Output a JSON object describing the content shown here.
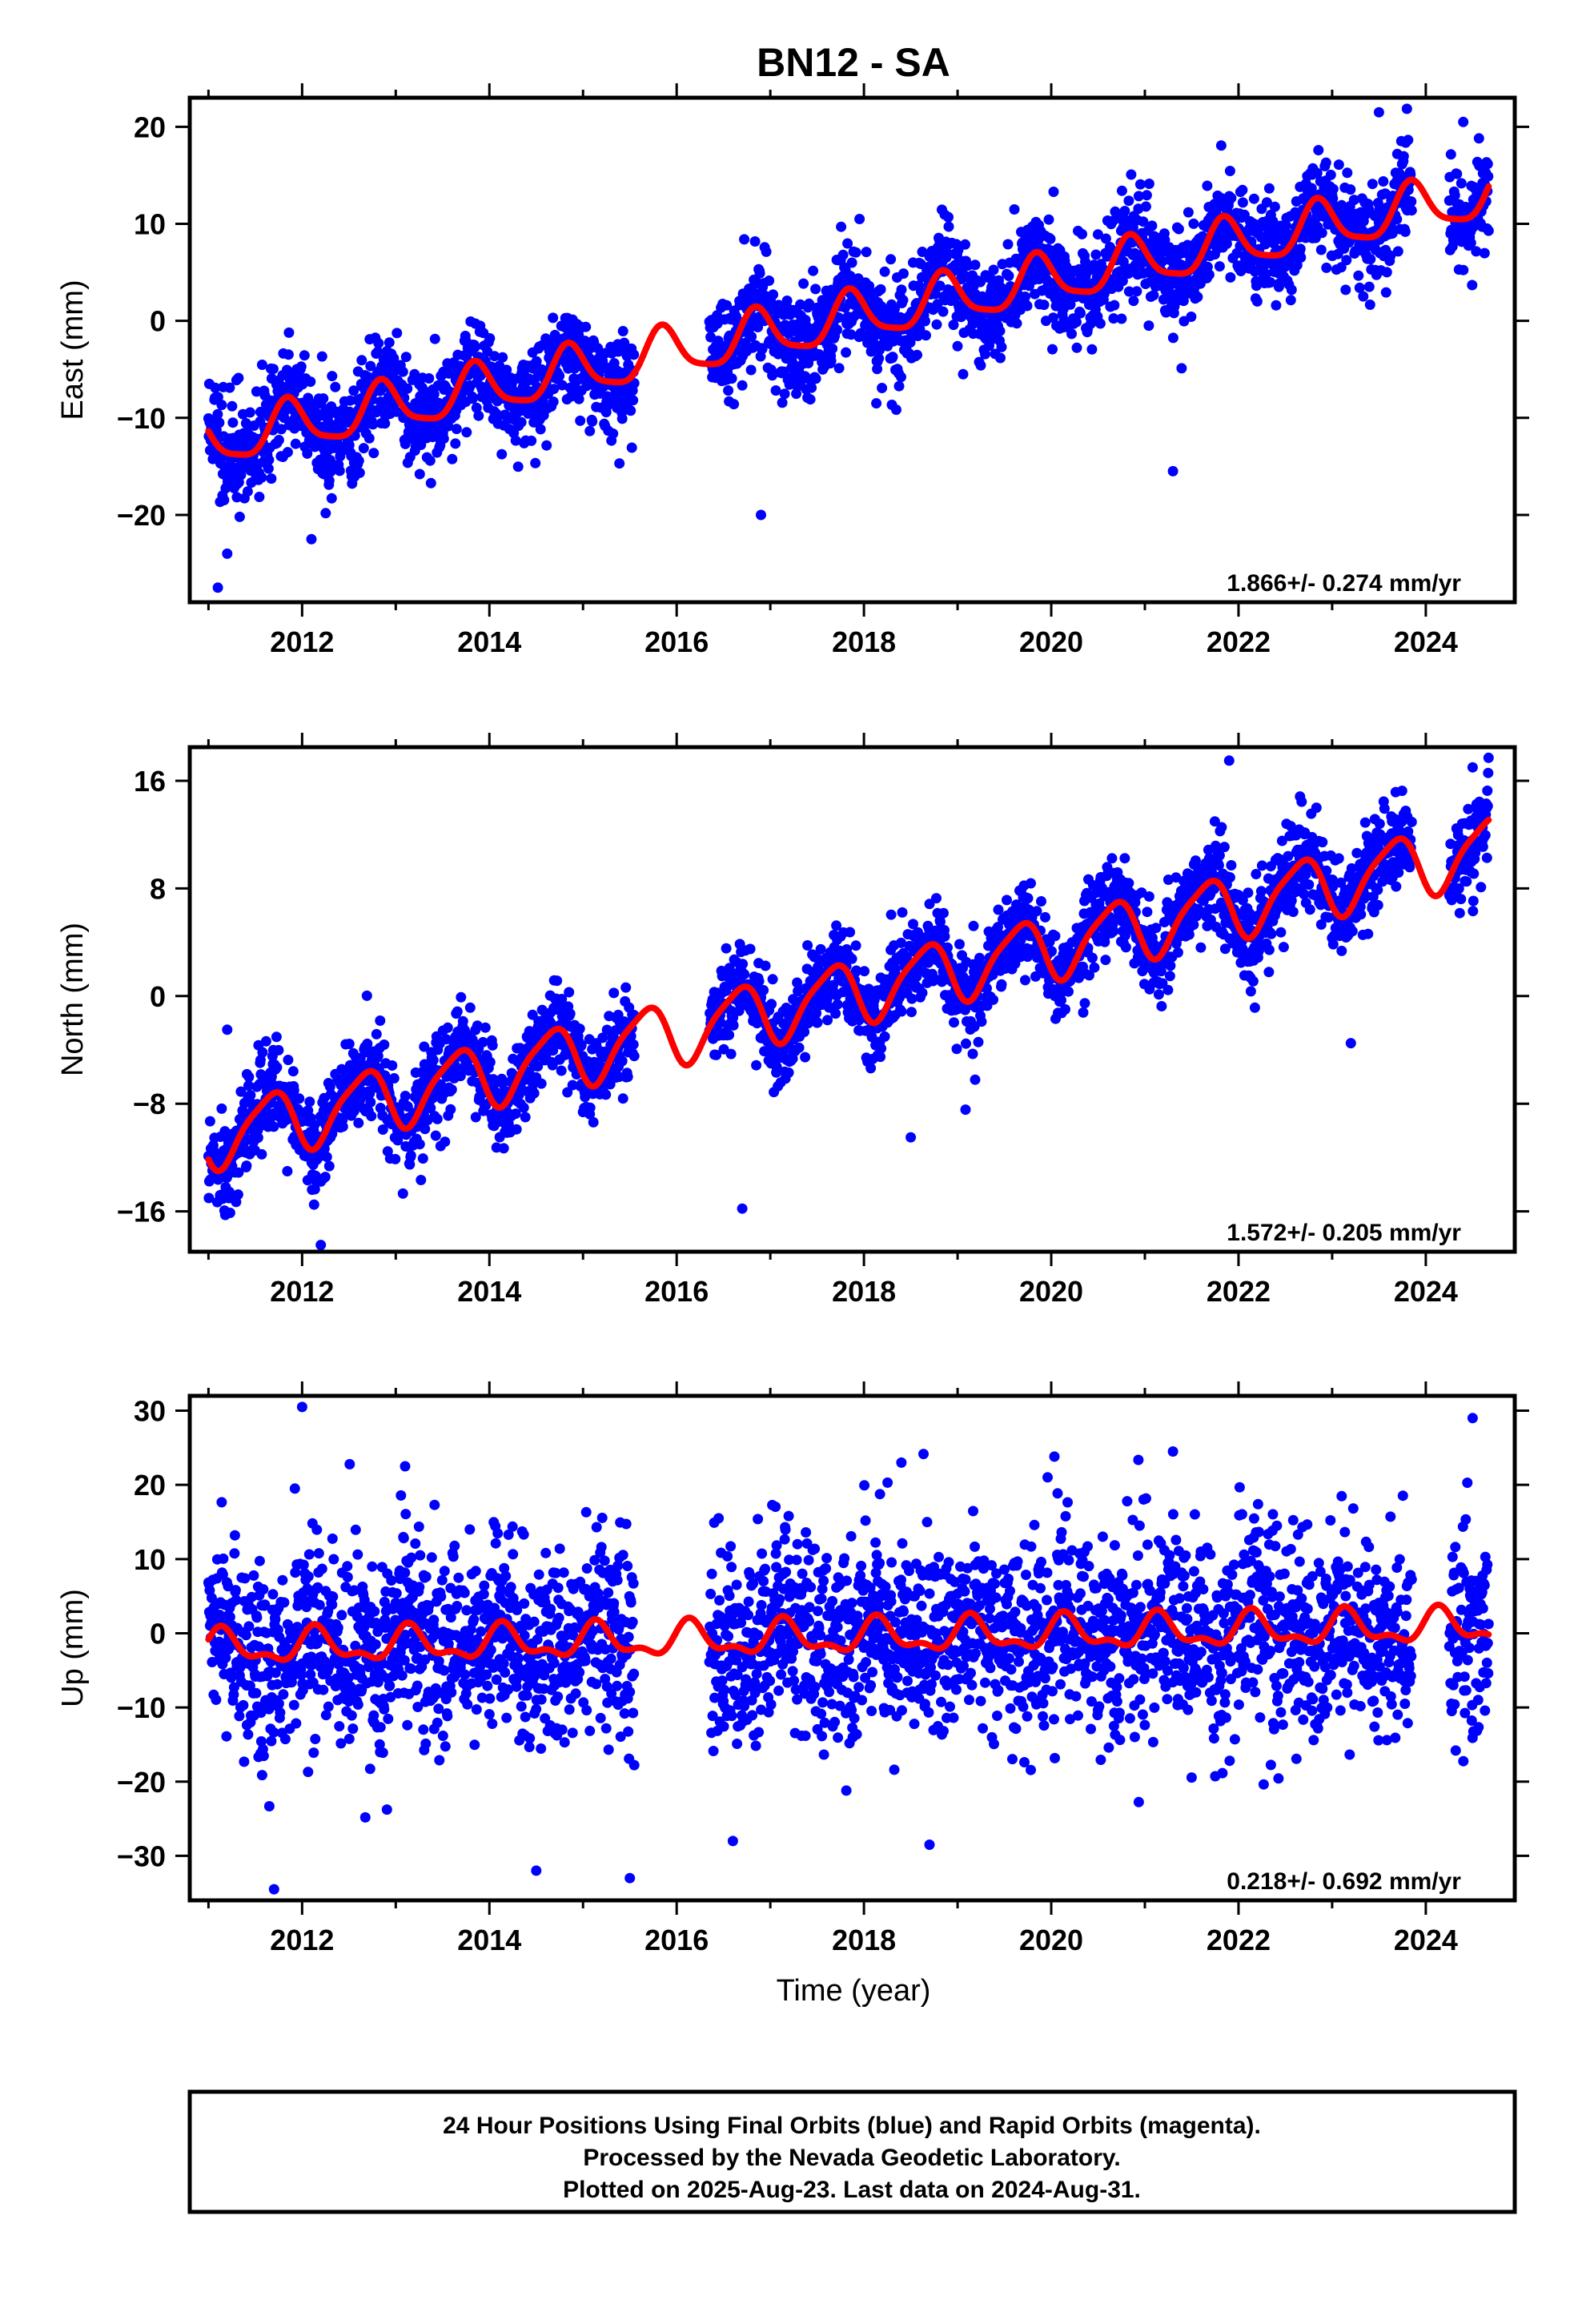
{
  "chart_data": {
    "type": "scatter",
    "title": "BN12 - SA",
    "xlabel": "Time (year)",
    "xlim": [
      2010.8,
      2024.95
    ],
    "x_ticks": [
      "2012",
      "2014",
      "2016",
      "2018",
      "2020",
      "2022",
      "2024"
    ],
    "data_gap": [
      2015.55,
      2016.35
    ],
    "colors": {
      "points": "#0000ff",
      "model": "#ff0000",
      "frame": "#000000"
    },
    "panels": [
      {
        "ylabel": "East (mm)",
        "ylim": [
          -29,
          23
        ],
        "y_ticks": [
          "20",
          "10",
          "0",
          "−10",
          "−20"
        ],
        "rate_label": "1.866+/- 0.274 mm/yr",
        "points": {
          "series": "daily East positions",
          "x_range": [
            2011.0,
            2024.67
          ],
          "trend_start": -12.5,
          "trend_rate": 1.866,
          "annual_amplitude": 2.5,
          "annual_phase": 0.4,
          "offset_after_gap": 0.0,
          "scatter": 2.5,
          "count": 3200,
          "outliers": [
            [
              2011.1,
              -27.5
            ],
            [
              2011.2,
              -24.0
            ],
            [
              2016.9,
              -20.0
            ],
            [
              2021.3,
              -15.5
            ],
            [
              2023.5,
              21.5
            ],
            [
              2024.4,
              20.5
            ],
            [
              2012.1,
              -22.5
            ]
          ]
        },
        "model": {
          "trend_start": -12.5,
          "trend_rate": 1.866,
          "annual_amplitude": 2.5,
          "annual_phase": 0.4,
          "semiannual_amplitude": 0.6,
          "semiannual_phase": 0.8
        }
      },
      {
        "ylabel": "North (mm)",
        "ylim": [
          -19,
          18.5
        ],
        "y_ticks": [
          "16",
          "8",
          "0",
          "−8",
          "−16"
        ],
        "rate_label": "1.572+/- 0.205 mm/yr",
        "points": {
          "series": "daily North positions",
          "x_range": [
            2011.0,
            2024.67
          ],
          "trend_start": -10.5,
          "trend_rate": 1.572,
          "annual_amplitude": 2.3,
          "annual_phase": 0.6,
          "offset_after_gap": 0.0,
          "scatter": 1.6,
          "count": 3200,
          "outliers": [
            [
              2011.2,
              -2.5
            ],
            [
              2012.2,
              -18.5
            ],
            [
              2016.7,
              -15.8
            ],
            [
              2021.9,
              17.5
            ],
            [
              2024.5,
              17.0
            ],
            [
              2023.2,
              -3.5
            ],
            [
              2018.5,
              -10.5
            ]
          ]
        },
        "model": {
          "trend_start": -10.5,
          "trend_rate": 1.572,
          "annual_amplitude": 2.3,
          "annual_phase": 0.6,
          "semiannual_amplitude": 0.5,
          "semiannual_phase": 0.3
        }
      },
      {
        "ylabel": "Up (mm)",
        "ylim": [
          -36,
          32
        ],
        "y_ticks": [
          "30",
          "20",
          "10",
          "0",
          "−10",
          "−20",
          "−30"
        ],
        "rate_label": "0.218+/- 0.692 mm/yr",
        "points": {
          "series": "daily Up positions",
          "x_range": [
            2011.0,
            2024.67
          ],
          "trend_start": -2.0,
          "trend_rate": 0.218,
          "annual_amplitude": 2.0,
          "annual_phase": 0.1,
          "offset_after_gap": 0.0,
          "scatter": 6.5,
          "count": 3200,
          "outliers": [
            [
              2012.0,
              30.5
            ],
            [
              2011.7,
              -34.5
            ],
            [
              2014.5,
              -32.0
            ],
            [
              2015.5,
              -33.0
            ],
            [
              2024.5,
              29.0
            ],
            [
              2013.1,
              22.5
            ],
            [
              2021.3,
              24.5
            ],
            [
              2018.4,
              23.0
            ],
            [
              2016.6,
              -28.0
            ],
            [
              2018.7,
              -28.5
            ]
          ]
        },
        "model": {
          "trend_start": -2.0,
          "trend_rate": 0.218,
          "annual_amplitude": 2.0,
          "annual_phase": 0.1,
          "semiannual_amplitude": 1.0,
          "semiannual_phase": 0.5
        }
      }
    ]
  },
  "footnote": {
    "line1": "24 Hour Positions Using Final Orbits (blue) and Rapid Orbits (magenta).",
    "line2": "Processed by the Nevada Geodetic Laboratory.",
    "line3": "Plotted on 2025-Aug-23. Last data on 2024-Aug-31."
  }
}
